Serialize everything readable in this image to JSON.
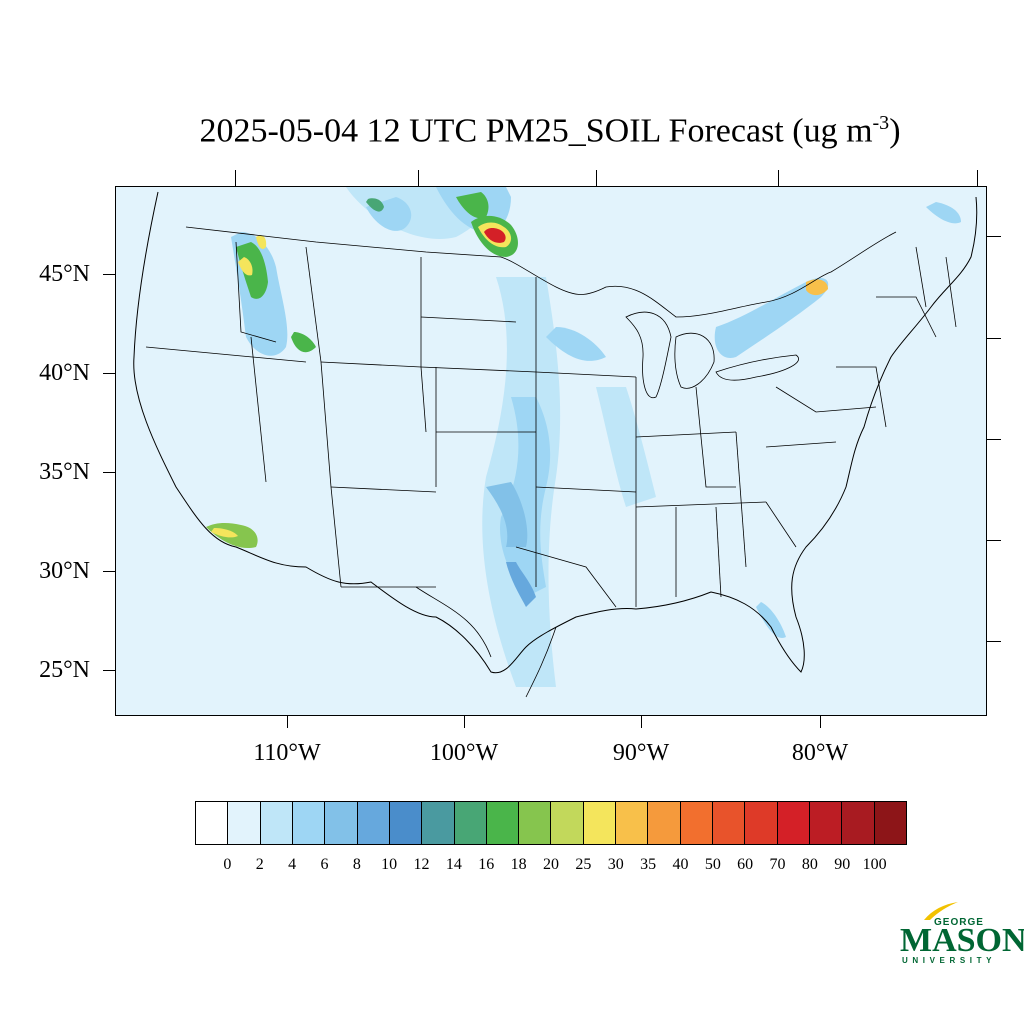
{
  "title": {
    "main": "2025-05-04 12 UTC PM25_SOIL Forecast (ug m",
    "sup": "-3",
    "close": ")"
  },
  "map": {
    "background_color": "#e2f3fc",
    "lat_labels": [
      "45°N",
      "40°N",
      "35°N",
      "30°N",
      "25°N"
    ],
    "lon_labels": [
      "110°W",
      "100°W",
      "90°W",
      "80°W"
    ]
  },
  "colorbar": {
    "colors": [
      "#ffffff",
      "#e2f3fc",
      "#bfe6f8",
      "#9ed6f4",
      "#82c1e8",
      "#66a8dd",
      "#4a8dcb",
      "#4a9aa0",
      "#48a675",
      "#4ab54a",
      "#86c54e",
      "#c2d85b",
      "#f4e55c",
      "#f8c04a",
      "#f59a3c",
      "#f26f2e",
      "#e8532b",
      "#de3a28",
      "#d42027",
      "#bc1d24",
      "#a81b21",
      "#8d1518"
    ],
    "labels": [
      "0",
      "2",
      "4",
      "6",
      "8",
      "10",
      "12",
      "14",
      "16",
      "18",
      "20",
      "25",
      "30",
      "35",
      "40",
      "50",
      "60",
      "70",
      "80",
      "90",
      "100"
    ]
  },
  "logo": {
    "george": "GEORGE",
    "mason": "MASON",
    "university": "UNIVERSITY",
    "color": "#006633",
    "accent": "#f2c200"
  }
}
